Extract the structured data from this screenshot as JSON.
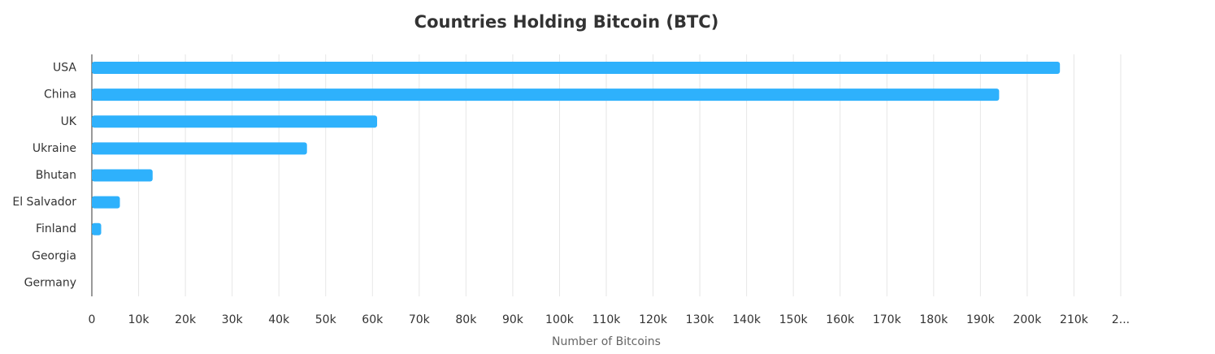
{
  "chart_data": {
    "type": "hbar",
    "title": "Countries Holding Bitcoin (BTC)",
    "x_label": "Number of Bitcoins",
    "categories": [
      "USA",
      "China",
      "UK",
      "Ukraine",
      "Bhutan",
      "El Salvador",
      "Finland",
      "Georgia",
      "Germany"
    ],
    "values": [
      207000,
      194000,
      61000,
      46000,
      13000,
      6000,
      2000,
      0,
      0
    ],
    "color": "#2eb1fc",
    "xlim": [
      0,
      220000
    ],
    "xticks": [
      0,
      {
        "value": 10000,
        "label": "10k"
      },
      {
        "value": 20000,
        "label": "20k"
      },
      {
        "value": 30000,
        "label": "30k"
      },
      {
        "value": 40000,
        "label": "40k"
      },
      {
        "value": 50000,
        "label": "50k"
      },
      {
        "value": 60000,
        "label": "60k"
      },
      {
        "value": 70000,
        "label": "70k"
      },
      {
        "value": 80000,
        "label": "80k"
      },
      {
        "value": 90000,
        "label": "90k"
      },
      {
        "value": 100000,
        "label": "100k"
      },
      {
        "value": 110000,
        "label": "110k"
      },
      {
        "value": 120000,
        "label": "120k"
      },
      {
        "value": 130000,
        "label": "130k"
      },
      {
        "value": 140000,
        "label": "140k"
      },
      {
        "value": 150000,
        "label": "150k"
      },
      {
        "value": 160000,
        "label": "160k"
      },
      {
        "value": 170000,
        "label": "170k"
      },
      {
        "value": 180000,
        "label": "180k"
      },
      {
        "value": 190000,
        "label": "190k"
      },
      {
        "value": 200000,
        "label": "200k"
      },
      {
        "value": 210000,
        "label": "210k"
      },
      {
        "value": 220000,
        "label": "2..."
      }
    ],
    "grid": true
  }
}
